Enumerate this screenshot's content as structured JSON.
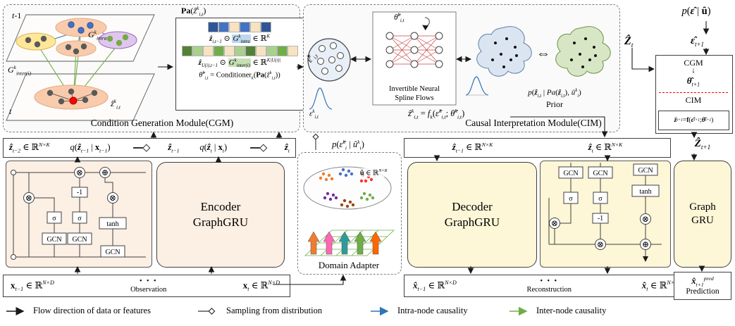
{
  "colors": {
    "intra": "#2e75b6",
    "inter": "#70ad47",
    "encoder_fill": "#fcefe4",
    "decoder_fill": "#fdf6d7",
    "red_dashed": "#ff0000"
  },
  "ops": {
    "sigma": "σ",
    "tanh": "tanh",
    "gcn": "GCN",
    "neg": "-1",
    "otimes": "⊗",
    "oplus": "⊕",
    "darr": "↓"
  },
  "cgm": {
    "title": "Condition Generation Module(CGM)",
    "t_prev": "<i>t</i>-1",
    "t_cur": "<i>t</i>",
    "pa_label": "<b>Pa</b>(<i>ẑ</i><sup>k</sup><sub>i,t</sub>)",
    "g_intra": "<i>G</i><sup>k</sup><sub>intra</sub>",
    "g_inter": "<i>G</i><sup>k</sup><sub>inter(i)</sub>",
    "z_hat_it": "<i>ẑ</i><sup>k</sup><sub>i,t</sub>",
    "strip1": [
      "#2f5597",
      "#4472c4",
      "#f7e3c0",
      "#4472c4",
      "#f7e3c0",
      "#2f5597"
    ],
    "strip2": [
      "#538135",
      "#a9d18e",
      "#f7e3c0",
      "#70ad47",
      "#f7e3c0",
      "#a9d18e",
      "#538135",
      "#f7e3c0",
      "#a9d18e",
      "#70ad47",
      "#f7e3c0"
    ],
    "eq1": "<b><i>ẑ</i></b><sub>i,t−1</sub> ⊙ <span class=\"hl-blue\"><i>G</i><sup>k</sup><sub>intra</sub></span> ∈ ℝ<sup>K</sup>",
    "eq2": "<b><i>ẑ</i></b><sub>U(i),t−1</sub> ⊙ <span class=\"hl-green\"><i>G</i><sup>k</sup><sub>inter(i)</sub></span> ∈ ℝ<sup>K|U(i)|</sup>",
    "eq3": "<i>θ̂</i><sup>k</sup><sub>i,t</sub> = Conditioner<sub>k</sub>(<b>Pa</b>(<i>ẑ</i><sup>k</sup><sub>i,t</sub>))"
  },
  "cim": {
    "title": "Causal Interpretation Module(CIM)",
    "eps_hat": "<i>ε̂</i><sup>k</sup><sub>i,t</sub>",
    "theta": "<i>θ̂</i><sup>k</sup><sub>i,t</sub>",
    "flows1": "Invertible Neural",
    "flows2": "Spline Flows",
    "iff": "⇔",
    "prior_eq": "<i>p</i>(<b><i>ẑ</i></b><sub>i,t</sub> | <i>Pa</i>(<b><i>ẑ</i></b><sub>i,t</sub>), <i>û</i><sup>k</sup><sub>i</sub>)",
    "prior": "Prior",
    "f_eq": "<i>ẑ</i><sup>k</sup><sub>i,t</sub> = <i>f<sub>k</sub></i>(<i>ε̂</i><sup>k</sup><sub>i,t</sub>; <i>θ̂</i><sup>k</sup><sub>i,t</sub>)",
    "eps": "<i>ε</i><sup>k</sup><sub>i,t</sub>"
  },
  "panel": {
    "p_title": "<i>p</i>(<b><i>ε̂</i></b> | <b>û</b>)",
    "z_t": "<b><i>Ẑ</i></b><sub>t</sub>",
    "eps_next": "<b><i>ε̂</i></b><sub>t+1</sub>",
    "cgm": "CGM",
    "theta_next": "<b><i>θ̂</i></b><sub>t+1</sub>",
    "cim": "CIM",
    "f_eq": "<b><i>ẑ</i></b><sub>t+1</sub> = <b>f</b>(<b><i>ε̂</i></b><sub>t+1</sub>; <b><i>θ̂</i></b><sub>t+1</sub>)",
    "z_next": "<b><i>Ẑ</i></b><sub>t+1</sub>"
  },
  "encoder": {
    "z_prev2": "<b><i>ẑ</i></b><sub>t−2</sub> ∈ ℝ<sup>N×K</sup>",
    "q1": "<i>q</i>(<b><i>ẑ</i></b><sub>t−1</sub> | <b>x</b><sub>t−1</sub>)",
    "z_prev": "<b><i>ẑ</i></b><sub>t−1</sub>",
    "q2": "<i>q</i>(<b><i>ẑ</i></b><sub>t</sub> | <b>x</b><sub>t</sub>)",
    "z_cur": "<b><i>ẑ</i></b><sub>t</sub>",
    "line1": "Encoder",
    "line2": "GraphGRU"
  },
  "adapter": {
    "p_label": "<i>p</i>(<i>ε̂</i><sup>k</sup><sub>i</sub> | <i>û</i><sup>k</sup><sub>i</sub>)",
    "u_label": "<b>û</b> ∈ ℝ<sup>N×R</sup>",
    "title": "Domain Adapter",
    "cluster_colors": [
      "#ed7d31",
      "#4472c4",
      "#ff3333",
      "#7030a0",
      "#70ad47",
      "#9e480e"
    ],
    "bar_colors": [
      "#ed7d31",
      "#ff66b3",
      "#2e9b9b",
      "#70ad47",
      "#ff6600"
    ]
  },
  "decoder": {
    "z_prev_dim": "<b><i>ẑ</i></b><sub>t−1</sub> ∈ ℝ<sup>N×K</sup>",
    "z_cur_dim": "<b><i>ẑ</i></b><sub>t</sub> ∈ ℝ<sup>N×K</sup>",
    "line1": "Decoder",
    "line2": "GraphGRU",
    "gru1": "Graph",
    "gru2": "GRU"
  },
  "bottom": {
    "obs1": "<b>x</b><sub>t−1</sub> ∈ ℝ<sup>N×D</sup>",
    "obs2": "<b>x</b><sub>t</sub> ∈ ℝ<sup>N×D</sup>",
    "obs_label": "Observation",
    "rec1": "<b><i>x̂</i></b><sub>t−1</sub> ∈ ℝ<sup>N×D</sup>",
    "rec2": "<b><i>x̂</i></b><sub>t</sub> ∈ ℝ<sup>N×D</sup>",
    "rec_label": "Reconstruction",
    "pred": "<b><i>x̂</i></b><sub>t+1</sub><sup>pred</sup>",
    "pred_label": "Prediction",
    "dots": "• • •"
  },
  "legend": {
    "flow": "Flow direction of data or features",
    "sampling": "Sampling from distribution",
    "intra": "Intra-node causality",
    "inter": "Inter-node causality"
  }
}
